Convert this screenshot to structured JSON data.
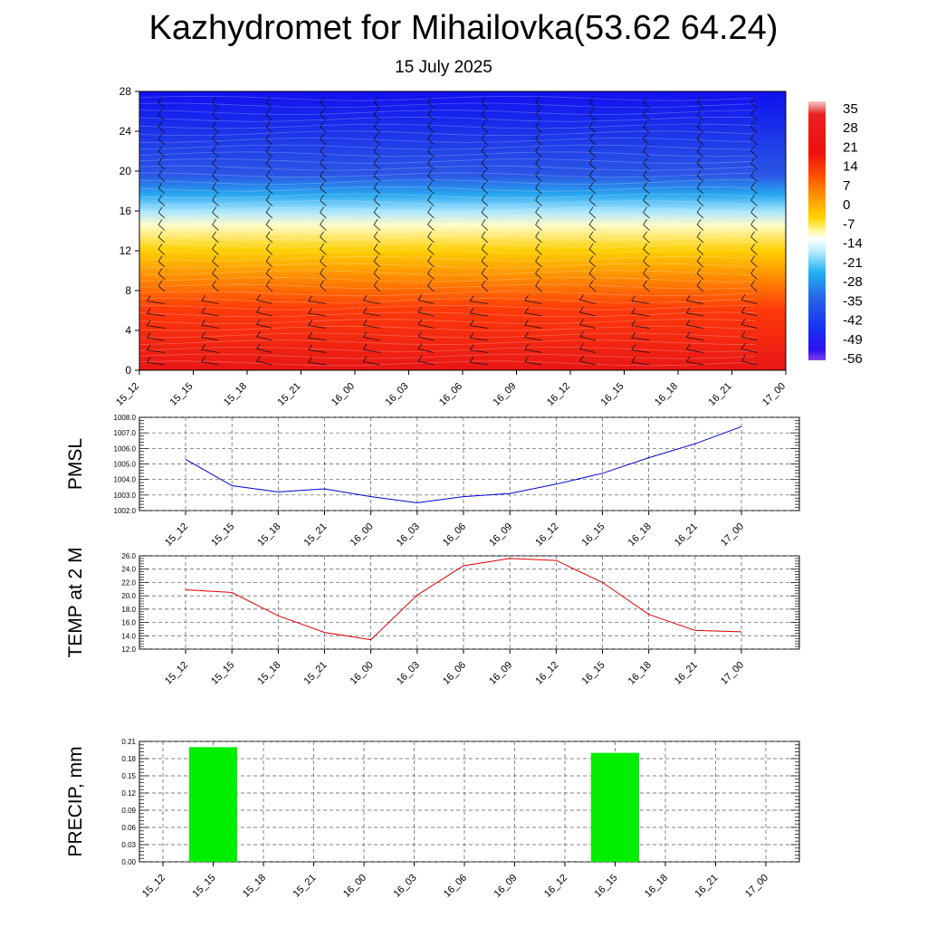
{
  "title": "Kazhydromet for Mihailovka(53.62 64.24)",
  "subtitle": "15 July 2025",
  "time_labels": [
    "15_12",
    "15_15",
    "15_18",
    "15_21",
    "16_00",
    "16_03",
    "16_06",
    "16_09",
    "16_12",
    "16_15",
    "16_18",
    "16_21",
    "17_00"
  ],
  "chart_data": [
    {
      "type": "heatmap",
      "name": "temperature-cross-section",
      "x": [
        "15_12",
        "15_15",
        "15_18",
        "15_21",
        "16_00",
        "16_03",
        "16_06",
        "16_09",
        "16_12",
        "16_15",
        "16_18",
        "16_21",
        "17_00"
      ],
      "y_ticks": [
        "0",
        "4",
        "8",
        "12",
        "16",
        "20",
        "24",
        "28"
      ],
      "ylim": [
        0,
        28
      ],
      "colorbar_labels": [
        "35",
        "28",
        "21",
        "14",
        "7",
        "0",
        "-7",
        "-14",
        "-21",
        "-28",
        "-35",
        "-42",
        "-49",
        "-56"
      ],
      "colorbar_range": [
        -60,
        38
      ],
      "colors": {
        "low": "#1a1aff",
        "mid_cold": "#35a0f0",
        "freeze": "#fff8a0",
        "warm": "#ffa000",
        "hot": "#f01010"
      },
      "wind_barbs": true
    },
    {
      "type": "line",
      "name": "pmsl",
      "ylabel": "PMSL",
      "x": [
        "15_12",
        "15_15",
        "15_18",
        "15_21",
        "16_00",
        "16_03",
        "16_06",
        "16_09",
        "16_12",
        "16_15",
        "16_18",
        "16_21",
        "17_00"
      ],
      "values": [
        1005.3,
        1003.6,
        1003.2,
        1003.4,
        1002.9,
        1002.5,
        1002.9,
        1003.1,
        1003.7,
        1004.4,
        1005.4,
        1006.3,
        1007.4
      ],
      "ylim": [
        1002.0,
        1008.0
      ],
      "y_ticks": [
        "1002.0",
        "1003.0",
        "1004.0",
        "1005.0",
        "1006.0",
        "1007.0",
        "1008.0"
      ],
      "color": "#0000cc",
      "grid": true
    },
    {
      "type": "line",
      "name": "temp-2m",
      "ylabel": "TEMP at 2 M",
      "x": [
        "15_12",
        "15_15",
        "15_18",
        "15_21",
        "16_00",
        "16_03",
        "16_06",
        "16_09",
        "16_12",
        "16_15",
        "16_18",
        "16_21",
        "17_00"
      ],
      "values": [
        20.9,
        20.5,
        17.0,
        14.5,
        13.4,
        20.1,
        24.5,
        25.6,
        25.3,
        22.0,
        17.2,
        14.8,
        14.6
      ],
      "ylim": [
        12.0,
        26.0
      ],
      "y_ticks": [
        "12.0",
        "14.0",
        "16.0",
        "18.0",
        "20.0",
        "22.0",
        "24.0",
        "26.0"
      ],
      "color": "#e00000",
      "grid": true
    },
    {
      "type": "bar",
      "name": "precip",
      "ylabel": "PRECIP, mm",
      "categories": [
        "15_12",
        "15_15",
        "15_18",
        "15_21",
        "16_00",
        "16_03",
        "16_06",
        "16_09",
        "16_12",
        "16_15",
        "16_18",
        "16_21",
        "17_00"
      ],
      "values": [
        0,
        0.2,
        0,
        0,
        0,
        0,
        0,
        0,
        0,
        0.19,
        0,
        0,
        0
      ],
      "ylim": [
        0,
        0.21
      ],
      "y_ticks": [
        "0.00",
        "0.03",
        "0.06",
        "0.09",
        "0.12",
        "0.15",
        "0.18",
        "0.21"
      ],
      "color": "#00ee00",
      "grid": true
    }
  ]
}
